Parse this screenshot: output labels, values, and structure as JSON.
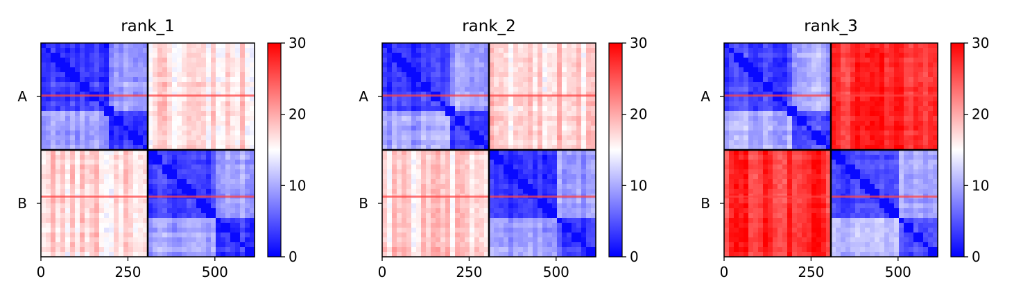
{
  "chart_data": [
    {
      "type": "heatmap",
      "title": "rank_1",
      "x_ticks": [
        0,
        250,
        500
      ],
      "y_tick_labels": [
        "A",
        "B"
      ],
      "chain_sizes": [
        307,
        307
      ],
      "xlim": [
        0,
        614
      ],
      "colorbar": {
        "range": [
          0,
          30
        ],
        "ticks": [
          0,
          10,
          20,
          30
        ],
        "colormap": "bwr"
      },
      "block_means": {
        "A_A": 3.5,
        "A_B": 17,
        "B_A": 17,
        "B_B": 3.5
      },
      "bright_stripes": [
        150,
        440
      ]
    },
    {
      "type": "heatmap",
      "title": "rank_2",
      "x_ticks": [
        0,
        250,
        500
      ],
      "y_tick_labels": [
        "A",
        "B"
      ],
      "chain_sizes": [
        307,
        307
      ],
      "xlim": [
        0,
        614
      ],
      "colorbar": {
        "range": [
          0,
          30
        ],
        "ticks": [
          0,
          10,
          20,
          30
        ],
        "colormap": "bwr"
      },
      "block_means": {
        "A_A": 3.5,
        "A_B": 17.5,
        "B_A": 17.5,
        "B_B": 3.5
      },
      "bright_stripes": [
        150,
        440
      ]
    },
    {
      "type": "heatmap",
      "title": "rank_3",
      "x_ticks": [
        0,
        250,
        500
      ],
      "y_tick_labels": [
        "A",
        "B"
      ],
      "chain_sizes": [
        307,
        307
      ],
      "xlim": [
        0,
        614
      ],
      "colorbar": {
        "range": [
          0,
          30
        ],
        "ticks": [
          0,
          10,
          20,
          30
        ],
        "colormap": "bwr"
      },
      "block_means": {
        "A_A": 4,
        "A_B": 27,
        "B_A": 27,
        "B_B": 4
      },
      "bright_stripes": [
        150,
        440
      ]
    }
  ],
  "colors": {
    "low": "#0000ff",
    "mid": "#ffffff",
    "high": "#ff0000",
    "divider": "#000000"
  }
}
